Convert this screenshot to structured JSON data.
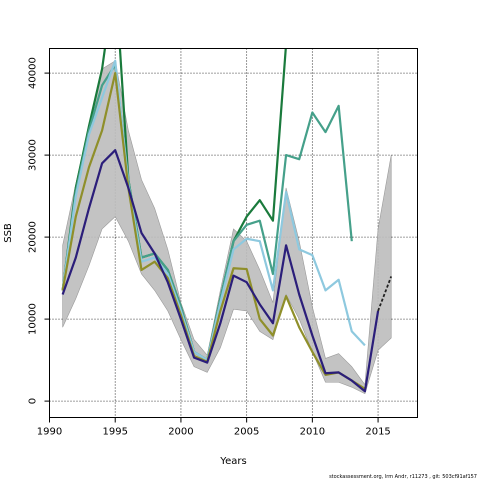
{
  "chart_data": {
    "type": "line",
    "xlabel": "Years",
    "ylabel": "SSB",
    "xlim": [
      1990,
      2018
    ],
    "ylim": [
      -2000,
      43000
    ],
    "x_ticks": [
      1990,
      1995,
      2000,
      2005,
      2010,
      2015
    ],
    "y_ticks": [
      0,
      10000,
      20000,
      30000,
      40000
    ],
    "grid": true,
    "band": {
      "color": "#bdbdbd",
      "x": [
        1991,
        1992,
        1993,
        1994,
        1995,
        1996,
        1997,
        1998,
        1999,
        2000,
        2001,
        2002,
        2003,
        2004,
        2005,
        2006,
        2007,
        2008,
        2009,
        2010,
        2011,
        2012,
        2013,
        2014,
        2015,
        2016
      ],
      "lower": [
        9000,
        12500,
        16500,
        21000,
        22500,
        19500,
        15500,
        13500,
        11000,
        7500,
        4200,
        3500,
        6500,
        11200,
        11000,
        8500,
        7500,
        13000,
        10000,
        6000,
        2300,
        2300,
        1700,
        900,
        6200,
        7700
      ],
      "upper": [
        19000,
        26500,
        33500,
        40500,
        41500,
        33000,
        27000,
        23500,
        18500,
        12000,
        7500,
        5600,
        13500,
        21000,
        19500,
        16000,
        12000,
        26000,
        19500,
        11500,
        5200,
        5800,
        4200,
        2000,
        21000,
        30000
      ]
    },
    "series": [
      {
        "color": "#1a7a3c",
        "x": [
          1991,
          1992,
          1993,
          1994,
          1995,
          1996,
          1997,
          1998,
          1999,
          2000,
          2001,
          2002,
          2003,
          2004,
          2005,
          2006,
          2007,
          2008
        ],
        "values": [
          13500,
          26000,
          33500,
          40500,
          52000,
          27000,
          17500,
          18000,
          16000,
          11500,
          6000,
          5000,
          12500,
          19500,
          22500,
          24500,
          22000,
          43500
        ]
      },
      {
        "color": "#45a08a",
        "x": [
          1991,
          1992,
          1993,
          1994,
          1995,
          1996,
          1997,
          1998,
          1999,
          2000,
          2001,
          2002,
          2003,
          2004,
          2005,
          2006,
          2007,
          2008,
          2009,
          2010,
          2011,
          2012,
          2013
        ],
        "values": [
          13500,
          25500,
          33000,
          38500,
          41000,
          27000,
          17500,
          18000,
          16000,
          11500,
          6000,
          5000,
          12500,
          19500,
          21500,
          22000,
          15500,
          30000,
          29500,
          35200,
          32800,
          36000,
          19500
        ]
      },
      {
        "color": "#8ec9df",
        "x": [
          1991,
          1992,
          1993,
          1994,
          1995,
          1996,
          1997,
          1998,
          1999,
          2000,
          2001,
          2002,
          2003,
          2004,
          2005,
          2006,
          2007,
          2008,
          2009,
          2010,
          2011,
          2012,
          2013,
          2014
        ],
        "values": [
          13500,
          25000,
          32500,
          37000,
          41500,
          26500,
          17000,
          17500,
          15500,
          11000,
          6000,
          5000,
          12000,
          18500,
          19800,
          19500,
          13500,
          25500,
          18500,
          17800,
          13500,
          14800,
          8500,
          6800
        ]
      },
      {
        "color": "#8f8f2a",
        "x": [
          1991,
          1992,
          1993,
          1994,
          1995,
          1996,
          1997,
          1998,
          1999,
          2000,
          2001,
          2002,
          2003,
          2004,
          2005,
          2006,
          2007,
          2008,
          2009,
          2010,
          2011,
          2012,
          2013,
          2014
        ],
        "values": [
          13500,
          22500,
          28500,
          33000,
          40000,
          26000,
          16000,
          17000,
          15000,
          10500,
          5500,
          4800,
          11000,
          16200,
          16100,
          10000,
          8000,
          12800,
          9000,
          6000,
          3200,
          3500,
          2500,
          1500
        ]
      },
      {
        "color": "#2b1e7a",
        "x": [
          1991,
          1992,
          1993,
          1994,
          1995,
          1996,
          1997,
          1998,
          1999,
          2000,
          2001,
          2002,
          2003,
          2004,
          2005,
          2006,
          2007,
          2008,
          2009,
          2010,
          2011,
          2012,
          2013,
          2014,
          2015
        ],
        "values": [
          13000,
          17500,
          23500,
          29000,
          30600,
          26000,
          20500,
          18000,
          14500,
          10000,
          5300,
          4700,
          9500,
          15300,
          14500,
          11800,
          9500,
          19000,
          13000,
          8000,
          3400,
          3500,
          2500,
          1200,
          11000
        ]
      },
      {
        "color": "#222222",
        "dashed": true,
        "x": [
          2015,
          2016
        ],
        "values": [
          11000,
          15200
        ]
      }
    ]
  },
  "footer": {
    "credit": "stockassessment.org, lrm Andr, r11273 , git: 503cf91af157"
  }
}
